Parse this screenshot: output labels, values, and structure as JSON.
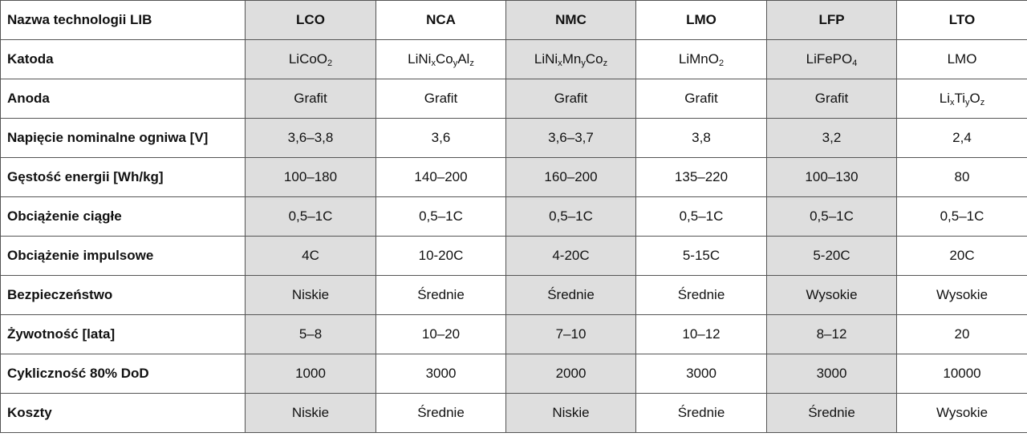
{
  "table": {
    "header": [
      "Nazwa technologii LIB",
      "LCO",
      "NCA",
      "NMC",
      "LMO",
      "LFP",
      "LTO"
    ],
    "rows": [
      [
        "Katoda",
        [
          "LiCoO",
          "2"
        ],
        [
          "LiNi",
          "x",
          "Co",
          "y",
          "Al",
          "z"
        ],
        [
          "LiNi",
          "x",
          "Mn",
          "y",
          "Co",
          "z"
        ],
        [
          "LiMnO",
          "2"
        ],
        [
          "LiFePO",
          "4"
        ],
        "LMO"
      ],
      [
        "Anoda",
        "Grafit",
        "Grafit",
        "Grafit",
        "Grafit",
        "Grafit",
        [
          "Li",
          "x",
          "Ti",
          "y",
          "O",
          "z"
        ]
      ],
      [
        "Napięcie nominalne ogniwa [V]",
        "3,6–3,8",
        "3,6",
        "3,6–3,7",
        "3,8",
        "3,2",
        "2,4"
      ],
      [
        "Gęstość energii [Wh/kg]",
        "100–180",
        "140–200",
        "160–200",
        "135–220",
        "100–130",
        "80"
      ],
      [
        "Obciążenie ciągłe",
        "0,5–1C",
        "0,5–1C",
        "0,5–1C",
        "0,5–1C",
        "0,5–1C",
        "0,5–1C"
      ],
      [
        "Obciążenie impulsowe",
        "4C",
        "10-20C",
        "4-20C",
        "5-15C",
        "5-20C",
        "20C"
      ],
      [
        "Bezpieczeństwo",
        "Niskie",
        "Średnie",
        "Średnie",
        "Średnie",
        "Wysokie",
        "Wysokie"
      ],
      [
        "Żywotność [lata]",
        "5–8",
        "10–20",
        "7–10",
        "10–12",
        "8–12",
        "20"
      ],
      [
        "Cykliczność 80% DoD",
        "1000",
        "3000",
        "2000",
        "3000",
        "3000",
        "10000"
      ],
      [
        "Koszty",
        "Niskie",
        "Średnie",
        "Niskie",
        "Średnie",
        "Średnie",
        "Wysokie"
      ]
    ]
  }
}
